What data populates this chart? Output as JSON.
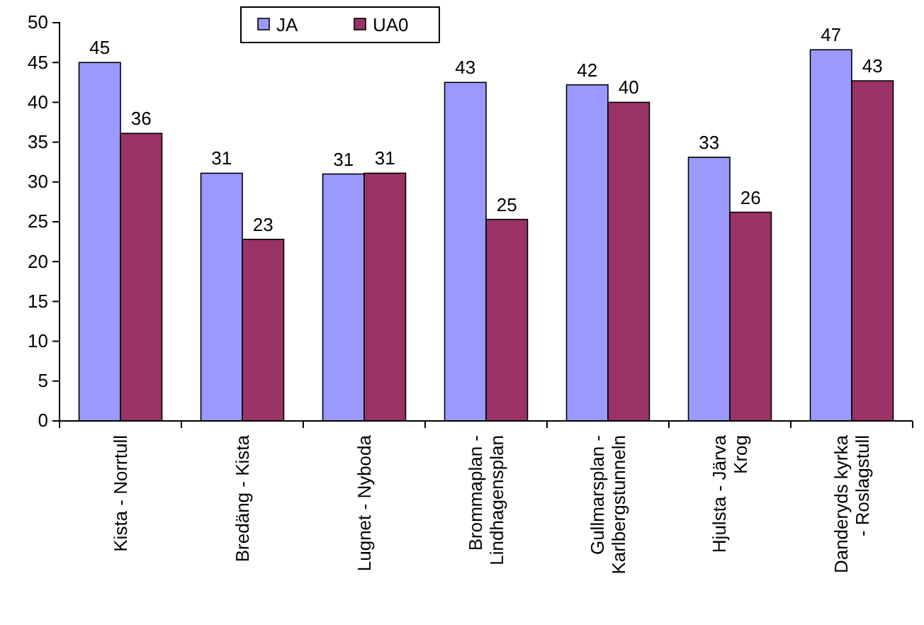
{
  "chart_data": {
    "type": "bar",
    "categories": [
      "Kista - Norrtull",
      "Bredäng - Kista",
      "Lugnet - Nyboda",
      "Brommaplan - Lindhagensplan",
      "Gullmarsplan - Karlbergstunneln",
      "Hjulsta - Järva Krog",
      "Danderyds kyrka - Roslagstull"
    ],
    "series": [
      {
        "name": "JA",
        "color": "#9999ff",
        "values": [
          45.0,
          31.1,
          31.0,
          42.5,
          42.2,
          33.1,
          46.6
        ],
        "value_labels": [
          "45",
          "31",
          "31",
          "43",
          "42",
          "33",
          "47"
        ]
      },
      {
        "name": "UA0",
        "color": "#993366",
        "values": [
          36.1,
          22.8,
          31.1,
          25.3,
          40.0,
          26.2,
          42.7
        ],
        "value_labels": [
          "36",
          "23",
          "31",
          "25",
          "40",
          "26",
          "43"
        ]
      }
    ],
    "ylim": [
      0,
      50
    ],
    "yticks": [
      0,
      5,
      10,
      15,
      20,
      25,
      30,
      35,
      40,
      45,
      50
    ],
    "grid": false,
    "legend": "top"
  }
}
